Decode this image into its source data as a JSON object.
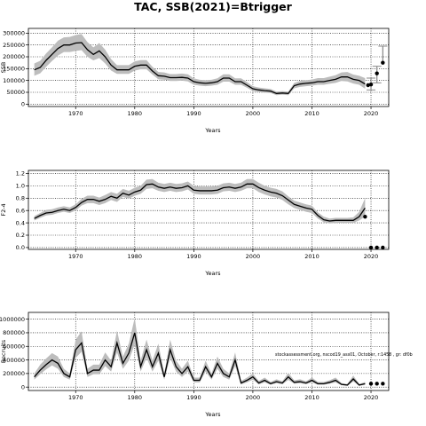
{
  "title": "TAC, SSB(2021)=Btrigger",
  "annotation": "stockassessment.org, nscod19_ass01, October, r:1458 , gr: df0b",
  "colors": {
    "band": "#bdbdbd",
    "line": "#000000",
    "grid": "#000000"
  },
  "chart_data": [
    {
      "type": "line",
      "name": "ssb",
      "xlabel": "Years",
      "ylabel": "SSB",
      "xlim": [
        1962,
        2023
      ],
      "ylim": [
        -10000,
        320000
      ],
      "xticks": [
        1970,
        1980,
        1990,
        2000,
        2010,
        2020
      ],
      "yticks": [
        0,
        50000,
        100000,
        150000,
        200000,
        250000,
        300000
      ],
      "ytick_labels": [
        "0",
        "50000",
        "100000",
        "150000",
        "200000",
        "250000",
        "300000"
      ],
      "grid": true,
      "x": [
        1963,
        1964,
        1965,
        1966,
        1967,
        1968,
        1969,
        1970,
        1971,
        1972,
        1973,
        1974,
        1975,
        1976,
        1977,
        1978,
        1979,
        1980,
        1981,
        1982,
        1983,
        1984,
        1985,
        1986,
        1987,
        1988,
        1989,
        1990,
        1991,
        1992,
        1993,
        1994,
        1995,
        1996,
        1997,
        1998,
        1999,
        2000,
        2001,
        2002,
        2003,
        2004,
        2005,
        2006,
        2007,
        2008,
        2009,
        2010,
        2011,
        2012,
        2013,
        2014,
        2015,
        2016,
        2017,
        2018,
        2019
      ],
      "values": [
        145000,
        155000,
        185000,
        210000,
        235000,
        250000,
        250000,
        258000,
        260000,
        230000,
        210000,
        225000,
        200000,
        165000,
        145000,
        145000,
        145000,
        160000,
        165000,
        165000,
        140000,
        120000,
        118000,
        112000,
        112000,
        113000,
        110000,
        95000,
        90000,
        88000,
        90000,
        95000,
        110000,
        110000,
        95000,
        95000,
        80000,
        65000,
        60000,
        57000,
        55000,
        45000,
        47000,
        45000,
        78000,
        85000,
        88000,
        90000,
        95000,
        95000,
        100000,
        105000,
        115000,
        115000,
        105000,
        100000,
        85000
      ],
      "lower": [
        120000,
        130000,
        158000,
        182000,
        205000,
        220000,
        220000,
        225000,
        228000,
        200000,
        185000,
        195000,
        172000,
        142000,
        128000,
        128000,
        128000,
        142000,
        147000,
        147000,
        125000,
        105000,
        103000,
        98000,
        98000,
        99000,
        96000,
        82000,
        78000,
        76000,
        78000,
        82000,
        95000,
        95000,
        82000,
        82000,
        69000,
        55000,
        51000,
        48000,
        47000,
        38000,
        40000,
        38000,
        67000,
        73000,
        76000,
        78000,
        82000,
        82000,
        86000,
        90000,
        98000,
        96000,
        87000,
        82000,
        65000
      ],
      "upper": [
        172000,
        183000,
        214000,
        240000,
        268000,
        282000,
        284000,
        292000,
        296000,
        262000,
        240000,
        258000,
        230000,
        190000,
        165000,
        165000,
        165000,
        181000,
        186000,
        186000,
        158000,
        136000,
        134000,
        127000,
        127000,
        129000,
        126000,
        109000,
        103000,
        101000,
        103000,
        109000,
        126000,
        126000,
        109000,
        109000,
        93000,
        76000,
        70000,
        67000,
        64000,
        53000,
        55000,
        53000,
        90000,
        98000,
        101000,
        104000,
        110000,
        110000,
        116000,
        122000,
        134000,
        136000,
        125000,
        120000,
        110000
      ],
      "forecast_x": [
        2019.5,
        2020,
        2021,
        2022
      ],
      "forecast_values": [
        80000,
        83000,
        130000,
        175000
      ],
      "forecast_lower": [
        null,
        60000,
        90000,
        null
      ],
      "forecast_upper": [
        null,
        110000,
        160000,
        245000
      ]
    },
    {
      "type": "line",
      "name": "f",
      "xlabel": "Years",
      "ylabel": "F2-4",
      "xlim": [
        1962,
        2023
      ],
      "ylim": [
        -0.03,
        1.25
      ],
      "xticks": [
        1970,
        1980,
        1990,
        2000,
        2010,
        2020
      ],
      "yticks": [
        0,
        0.2,
        0.4,
        0.6,
        0.8,
        1.0,
        1.2
      ],
      "ytick_labels": [
        "0.0",
        "0.2",
        "0.4",
        "0.6",
        "0.8",
        "1.0",
        "1.2"
      ],
      "grid": true,
      "x": [
        1963,
        1964,
        1965,
        1966,
        1967,
        1968,
        1969,
        1970,
        1971,
        1972,
        1973,
        1974,
        1975,
        1976,
        1977,
        1978,
        1979,
        1980,
        1981,
        1982,
        1983,
        1984,
        1985,
        1986,
        1987,
        1988,
        1989,
        1990,
        1991,
        1992,
        1993,
        1994,
        1995,
        1996,
        1997,
        1998,
        1999,
        2000,
        2001,
        2002,
        2003,
        2004,
        2005,
        2006,
        2007,
        2008,
        2009,
        2010,
        2011,
        2012,
        2013,
        2014,
        2015,
        2016,
        2017,
        2018,
        2019
      ],
      "values": [
        0.47,
        0.52,
        0.56,
        0.57,
        0.6,
        0.62,
        0.6,
        0.65,
        0.73,
        0.78,
        0.78,
        0.75,
        0.78,
        0.83,
        0.8,
        0.88,
        0.85,
        0.9,
        0.93,
        1.02,
        1.03,
        0.98,
        0.96,
        0.98,
        0.96,
        0.97,
        1.0,
        0.93,
        0.92,
        0.92,
        0.92,
        0.93,
        0.97,
        0.98,
        0.96,
        0.98,
        1.03,
        1.03,
        0.97,
        0.93,
        0.9,
        0.88,
        0.84,
        0.77,
        0.7,
        0.67,
        0.64,
        0.62,
        0.52,
        0.45,
        0.43,
        0.44,
        0.44,
        0.44,
        0.44,
        0.5,
        0.64
      ],
      "lower": [
        0.44,
        0.48,
        0.52,
        0.53,
        0.56,
        0.58,
        0.56,
        0.6,
        0.68,
        0.72,
        0.72,
        0.69,
        0.72,
        0.77,
        0.74,
        0.82,
        0.79,
        0.84,
        0.87,
        0.95,
        0.96,
        0.92,
        0.9,
        0.92,
        0.9,
        0.91,
        0.94,
        0.87,
        0.86,
        0.86,
        0.86,
        0.87,
        0.91,
        0.92,
        0.9,
        0.92,
        0.96,
        0.96,
        0.9,
        0.86,
        0.83,
        0.81,
        0.77,
        0.7,
        0.64,
        0.61,
        0.58,
        0.56,
        0.47,
        0.41,
        0.39,
        0.4,
        0.4,
        0.4,
        0.4,
        0.44,
        0.5
      ],
      "upper": [
        0.51,
        0.56,
        0.61,
        0.62,
        0.65,
        0.67,
        0.65,
        0.7,
        0.79,
        0.84,
        0.84,
        0.81,
        0.85,
        0.9,
        0.87,
        0.95,
        0.92,
        0.97,
        1.0,
        1.1,
        1.11,
        1.05,
        1.03,
        1.05,
        1.03,
        1.04,
        1.07,
        1.0,
        0.99,
        0.99,
        0.99,
        1.0,
        1.04,
        1.05,
        1.03,
        1.05,
        1.11,
        1.11,
        1.05,
        1.0,
        0.97,
        0.95,
        0.91,
        0.83,
        0.76,
        0.73,
        0.7,
        0.68,
        0.57,
        0.5,
        0.47,
        0.48,
        0.48,
        0.48,
        0.49,
        0.58,
        0.8
      ],
      "forecast_x": [
        2019,
        2020,
        2021,
        2022
      ],
      "forecast_values": [
        0.5,
        0.0,
        0.0,
        0.0
      ],
      "forecast_lower": [
        null,
        null,
        null,
        null
      ],
      "forecast_upper": [
        null,
        null,
        null,
        null
      ]
    },
    {
      "type": "line",
      "name": "recruitment",
      "xlabel": "Years",
      "ylabel": "Recruits",
      "xlim": [
        1962,
        2023
      ],
      "ylim": [
        -50000,
        1100000
      ],
      "xticks": [
        1970,
        1980,
        1990,
        2000,
        2010,
        2020
      ],
      "yticks": [
        0,
        200000,
        400000,
        600000,
        800000,
        1000000
      ],
      "ytick_labels": [
        "0",
        "200000",
        "400000",
        "600000",
        "800000",
        "1000000"
      ],
      "grid": true,
      "x": [
        1963,
        1964,
        1965,
        1966,
        1967,
        1968,
        1969,
        1970,
        1971,
        1972,
        1973,
        1974,
        1975,
        1976,
        1977,
        1978,
        1979,
        1980,
        1981,
        1982,
        1983,
        1984,
        1985,
        1986,
        1987,
        1988,
        1989,
        1990,
        1991,
        1992,
        1993,
        1994,
        1995,
        1996,
        1997,
        1998,
        1999,
        2000,
        2001,
        2002,
        2003,
        2004,
        2005,
        2006,
        2007,
        2008,
        2009,
        2010,
        2011,
        2012,
        2013,
        2014,
        2015,
        2016,
        2017,
        2018,
        2019
      ],
      "values": [
        150000,
        250000,
        330000,
        400000,
        350000,
        200000,
        150000,
        550000,
        650000,
        200000,
        250000,
        250000,
        400000,
        300000,
        650000,
        350000,
        500000,
        800000,
        300000,
        550000,
        300000,
        500000,
        150000,
        550000,
        300000,
        200000,
        300000,
        100000,
        100000,
        300000,
        150000,
        350000,
        200000,
        150000,
        400000,
        60000,
        100000,
        150000,
        60000,
        100000,
        50000,
        80000,
        60000,
        150000,
        70000,
        80000,
        60000,
        100000,
        50000,
        50000,
        70000,
        100000,
        40000,
        30000,
        120000,
        30000,
        50000
      ],
      "lower": [
        110000,
        190000,
        260000,
        320000,
        270000,
        150000,
        110000,
        430000,
        520000,
        150000,
        190000,
        190000,
        310000,
        230000,
        510000,
        270000,
        390000,
        630000,
        230000,
        430000,
        230000,
        390000,
        110000,
        430000,
        230000,
        150000,
        230000,
        70000,
        70000,
        230000,
        110000,
        270000,
        150000,
        110000,
        310000,
        40000,
        70000,
        110000,
        40000,
        70000,
        35000,
        56000,
        42000,
        105000,
        49000,
        56000,
        42000,
        70000,
        35000,
        35000,
        49000,
        70000,
        28000,
        21000,
        84000,
        21000,
        35000
      ],
      "upper": [
        200000,
        330000,
        420000,
        500000,
        450000,
        270000,
        200000,
        700000,
        820000,
        270000,
        330000,
        330000,
        510000,
        390000,
        830000,
        450000,
        640000,
        1020000,
        390000,
        700000,
        390000,
        640000,
        200000,
        700000,
        390000,
        270000,
        390000,
        140000,
        140000,
        390000,
        200000,
        450000,
        270000,
        200000,
        510000,
        90000,
        140000,
        200000,
        90000,
        140000,
        75000,
        115000,
        86000,
        210000,
        100000,
        115000,
        86000,
        140000,
        75000,
        75000,
        100000,
        140000,
        60000,
        45000,
        170000,
        45000,
        75000
      ],
      "forecast_x": [
        2020,
        2021,
        2022
      ],
      "forecast_values": [
        50000,
        50000,
        50000
      ],
      "forecast_lower": [
        null,
        null,
        null
      ],
      "forecast_upper": [
        null,
        null,
        null
      ]
    }
  ]
}
